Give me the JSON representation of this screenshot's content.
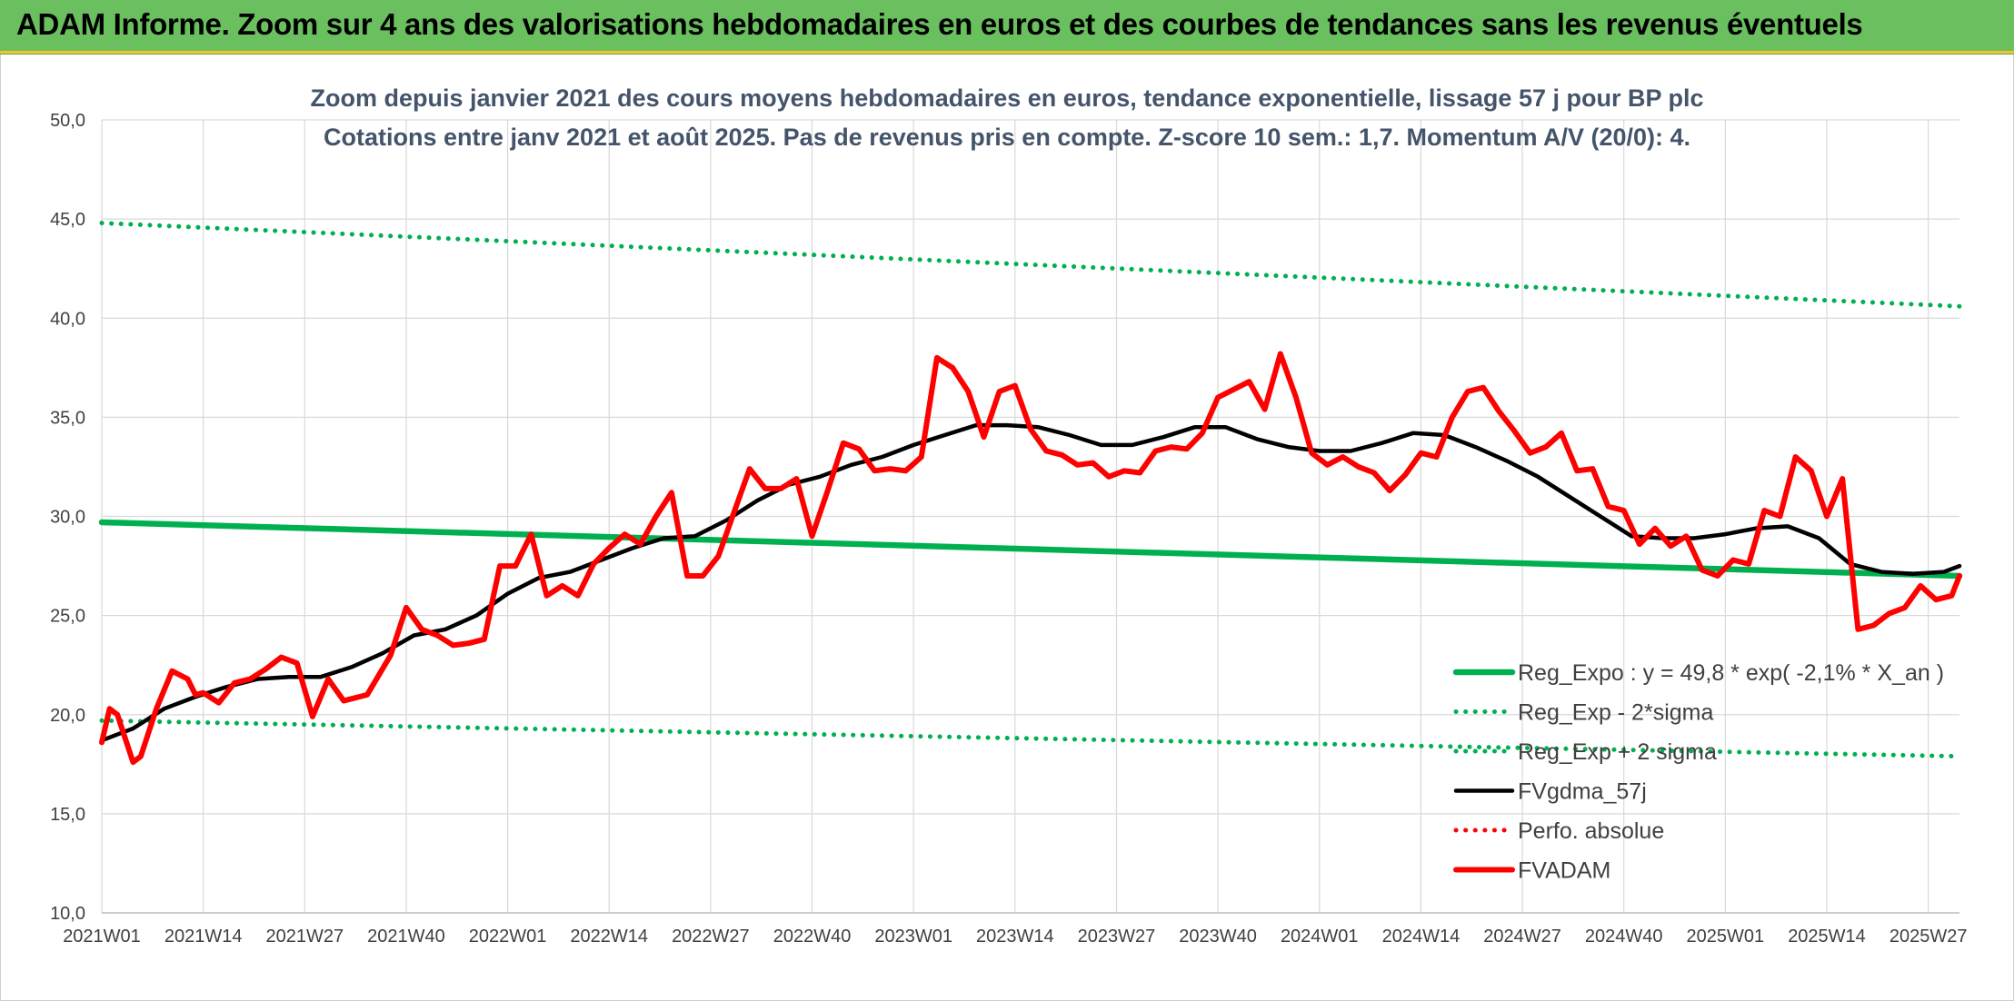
{
  "header": {
    "title": "ADAM Informe. Zoom sur 4 ans des valorisations hebdomadaires en euros et des courbes de tendances sans les revenus éventuels"
  },
  "colors": {
    "header_band": "#6abf5e",
    "green_trend": "#00b050",
    "black_smooth": "#000000",
    "red_price": "#ff0000",
    "grid": "#d9d9d9"
  },
  "chart_data": {
    "type": "line",
    "title": "Zoom depuis janvier 2021 des cours moyens hebdomadaires en euros, tendance exponentielle, lissage 57 j pour BP plc",
    "subtitle": "Cotations entre janv 2021 et août 2025. Pas de revenus pris en compte. Z-score 10 sem.: 1,7. Momentum A/V (20/0): 4.",
    "ylim": [
      10,
      50
    ],
    "y_ticks": [
      "10,0",
      "15,0",
      "20,0",
      "25,0",
      "30,0",
      "35,0",
      "40,0",
      "45,0",
      "50,0"
    ],
    "x_tick_labels": [
      "2021W01",
      "2021W14",
      "2021W27",
      "2021W40",
      "2022W01",
      "2022W14",
      "2022W27",
      "2022W40",
      "2023W01",
      "2023W14",
      "2023W27",
      "2023W40",
      "2024W01",
      "2024W14",
      "2024W27",
      "2024W40",
      "2025W01",
      "2025W14",
      "2025W27"
    ],
    "grid": true,
    "legend_position": "bottom-right",
    "series": [
      {
        "name": "Reg_Expo : y = 49,8 * exp( -2,1% *  X_an )",
        "style": "solid-thick",
        "color": "#00b050",
        "x": [
          "2021W01",
          "2025W31"
        ],
        "values": [
          29.7,
          27.0
        ]
      },
      {
        "name": "Reg_Exp - 2*sigma",
        "style": "dotted",
        "color": "#00b050",
        "x": [
          "2021W01",
          "2025W31"
        ],
        "values": [
          19.7,
          17.9
        ]
      },
      {
        "name": "Reg_Exp + 2 sigma",
        "style": "dotted",
        "color": "#00b050",
        "x": [
          "2021W01",
          "2025W31"
        ],
        "values": [
          44.8,
          40.6
        ]
      },
      {
        "name": "FVgdma_57j",
        "style": "solid",
        "color": "#000000",
        "x": [
          "2021W01",
          "2021W05",
          "2021W09",
          "2021W13",
          "2021W17",
          "2021W21",
          "2021W25",
          "2021W29",
          "2021W33",
          "2021W37",
          "2021W41",
          "2021W45",
          "2021W49",
          "2022W01",
          "2022W05",
          "2022W09",
          "2022W13",
          "2022W17",
          "2022W21",
          "2022W25",
          "2022W29",
          "2022W33",
          "2022W37",
          "2022W41",
          "2022W45",
          "2022W49",
          "2023W01",
          "2023W05",
          "2023W09",
          "2023W13",
          "2023W17",
          "2023W21",
          "2023W25",
          "2023W29",
          "2023W33",
          "2023W37",
          "2023W41",
          "2023W45",
          "2023W49",
          "2024W01",
          "2024W05",
          "2024W09",
          "2024W13",
          "2024W17",
          "2024W21",
          "2024W25",
          "2024W29",
          "2024W33",
          "2024W37",
          "2024W41",
          "2024W45",
          "2024W49",
          "2025W01",
          "2025W05",
          "2025W09",
          "2025W13",
          "2025W17",
          "2025W21",
          "2025W25",
          "2025W29",
          "2025W31"
        ],
        "values": [
          18.7,
          19.3,
          20.3,
          20.9,
          21.4,
          21.8,
          21.9,
          21.9,
          22.4,
          23.1,
          24.0,
          24.3,
          25.0,
          26.1,
          26.9,
          27.2,
          27.8,
          28.4,
          28.9,
          29.0,
          29.8,
          30.8,
          31.6,
          32.0,
          32.6,
          33.0,
          33.6,
          34.1,
          34.6,
          34.6,
          34.5,
          34.1,
          33.6,
          33.6,
          34.0,
          34.5,
          34.5,
          33.9,
          33.5,
          33.3,
          33.3,
          33.7,
          34.2,
          34.1,
          33.5,
          32.8,
          32.0,
          31.0,
          30.0,
          29.0,
          28.9,
          28.9,
          29.1,
          29.4,
          29.5,
          28.9,
          27.6,
          27.2,
          27.1,
          27.2,
          27.5
        ]
      },
      {
        "name": "Perfo. absolue",
        "style": "dotted",
        "color": "#ff0000",
        "x": [],
        "values": []
      },
      {
        "name": "FVADAM",
        "style": "solid-thick",
        "color": "#ff0000",
        "x": [
          "2021W01",
          "2021W02",
          "2021W03",
          "2021W05",
          "2021W06",
          "2021W08",
          "2021W10",
          "2021W12",
          "2021W13",
          "2021W14",
          "2021W16",
          "2021W18",
          "2021W20",
          "2021W22",
          "2021W24",
          "2021W26",
          "2021W28",
          "2021W30",
          "2021W32",
          "2021W35",
          "2021W38",
          "2021W40",
          "2021W42",
          "2021W44",
          "2021W46",
          "2021W48",
          "2021W50",
          "2021W52",
          "2022W02",
          "2022W04",
          "2022W06",
          "2022W08",
          "2022W10",
          "2022W12",
          "2022W14",
          "2022W16",
          "2022W18",
          "2022W20",
          "2022W22",
          "2022W24",
          "2022W26",
          "2022W28",
          "2022W30",
          "2022W32",
          "2022W34",
          "2022W36",
          "2022W38",
          "2022W40",
          "2022W42",
          "2022W44",
          "2022W46",
          "2022W48",
          "2022W50",
          "2022W52",
          "2023W02",
          "2023W04",
          "2023W06",
          "2023W08",
          "2023W10",
          "2023W12",
          "2023W14",
          "2023W16",
          "2023W18",
          "2023W20",
          "2023W22",
          "2023W24",
          "2023W26",
          "2023W28",
          "2023W30",
          "2023W32",
          "2023W34",
          "2023W36",
          "2023W38",
          "2023W40",
          "2023W42",
          "2023W44",
          "2023W46",
          "2023W48",
          "2023W50",
          "2023W52",
          "2024W02",
          "2024W04",
          "2024W06",
          "2024W08",
          "2024W10",
          "2024W12",
          "2024W14",
          "2024W16",
          "2024W18",
          "2024W20",
          "2024W22",
          "2024W24",
          "2024W26",
          "2024W28",
          "2024W30",
          "2024W32",
          "2024W34",
          "2024W36",
          "2024W38",
          "2024W40",
          "2024W42",
          "2024W44",
          "2024W46",
          "2024W48",
          "2024W50",
          "2024W52",
          "2025W02",
          "2025W04",
          "2025W06",
          "2025W08",
          "2025W10",
          "2025W12",
          "2025W14",
          "2025W16",
          "2025W18",
          "2025W20",
          "2025W22",
          "2025W24",
          "2025W26",
          "2025W28",
          "2025W30",
          "2025W31"
        ],
        "values": [
          18.6,
          20.3,
          20.0,
          17.6,
          17.9,
          20.3,
          22.2,
          21.8,
          21.0,
          21.1,
          20.6,
          21.6,
          21.8,
          22.3,
          22.9,
          22.6,
          19.9,
          21.8,
          20.7,
          21.0,
          23.0,
          25.4,
          24.3,
          24.0,
          23.5,
          23.6,
          23.8,
          27.5,
          27.5,
          29.1,
          26.0,
          26.5,
          26.0,
          27.6,
          28.4,
          29.1,
          28.6,
          30.0,
          31.2,
          27.0,
          27.0,
          28.0,
          30.2,
          32.4,
          31.4,
          31.4,
          31.9,
          29.0,
          31.3,
          33.7,
          33.4,
          32.3,
          32.4,
          32.3,
          33.0,
          38.0,
          37.5,
          36.3,
          34.0,
          36.3,
          36.6,
          34.4,
          33.3,
          33.1,
          32.6,
          32.7,
          32.0,
          32.3,
          32.2,
          33.3,
          33.5,
          33.4,
          34.2,
          36.0,
          36.4,
          36.8,
          35.4,
          38.2,
          36.0,
          33.2,
          32.6,
          33.0,
          32.5,
          32.2,
          31.3,
          32.1,
          33.2,
          33.0,
          35.0,
          36.3,
          36.5,
          35.3,
          34.3,
          33.2,
          33.5,
          34.2,
          32.3,
          32.4,
          30.5,
          30.3,
          28.6,
          29.4,
          28.5,
          29.0,
          27.3,
          27.0,
          27.8,
          27.6,
          30.3,
          30.0,
          33.0,
          32.3,
          30.0,
          31.9,
          24.3,
          24.5,
          25.1,
          25.4,
          26.5,
          25.8,
          26.0,
          27.0
        ]
      }
    ]
  }
}
